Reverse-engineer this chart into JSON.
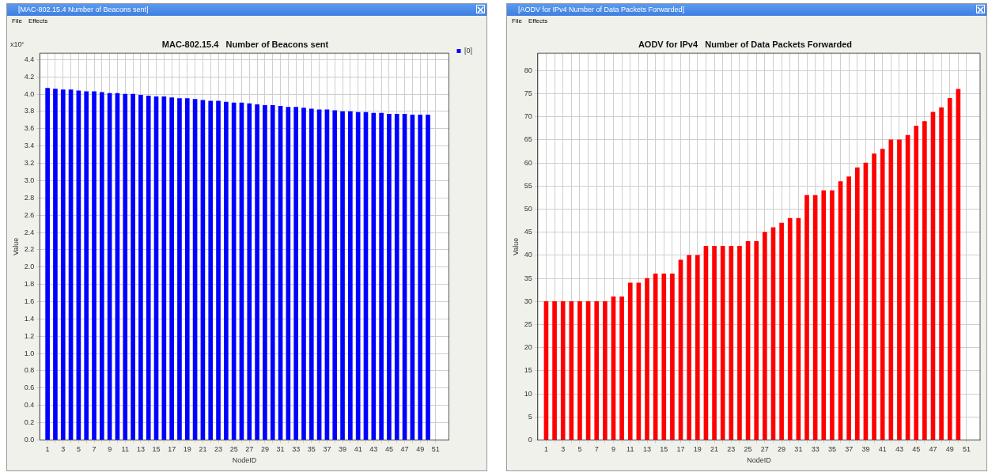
{
  "chart_data": [
    {
      "type": "bar",
      "title": "MAC-802.15.4   Number of Beacons sent",
      "xlabel": "NodeID",
      "ylabel": "Value",
      "legend": "top right",
      "grid": true,
      "annotations": [
        "[MAC-802.15.4   Number of Beacons sent]",
        "File",
        "Effects",
        "x10³"
      ],
      "x": [
        1,
        2,
        3,
        4,
        5,
        6,
        7,
        8,
        9,
        10,
        11,
        12,
        13,
        14,
        15,
        16,
        17,
        18,
        19,
        20,
        21,
        22,
        23,
        24,
        25,
        26,
        27,
        28,
        29,
        30,
        31,
        32,
        33,
        34,
        35,
        36,
        37,
        38,
        39,
        40,
        41,
        42,
        43,
        44,
        45,
        46,
        47,
        48,
        49,
        50
      ],
      "series": [
        {
          "name": "[0]",
          "color": "#0000ff",
          "values": [
            4.07,
            4.06,
            4.05,
            4.05,
            4.04,
            4.03,
            4.03,
            4.02,
            4.01,
            4.01,
            4.0,
            4.0,
            3.99,
            3.98,
            3.97,
            3.97,
            3.96,
            3.95,
            3.95,
            3.94,
            3.93,
            3.92,
            3.92,
            3.91,
            3.9,
            3.9,
            3.89,
            3.88,
            3.87,
            3.87,
            3.86,
            3.85,
            3.85,
            3.84,
            3.83,
            3.82,
            3.82,
            3.81,
            3.8,
            3.8,
            3.79,
            3.79,
            3.78,
            3.78,
            3.77,
            3.77,
            3.77,
            3.76,
            3.76,
            3.76
          ]
        }
      ],
      "xlim": [
        0,
        52.7
      ],
      "xticks": [
        1,
        {
          "value": 2,
          "label": null
        },
        3,
        {
          "value": 4,
          "label": null
        },
        5,
        {
          "value": 6,
          "label": null
        },
        7,
        {
          "value": 8,
          "label": null
        },
        9,
        {
          "value": 10,
          "label": null
        },
        11,
        {
          "value": 12,
          "label": null
        },
        13,
        {
          "value": 14,
          "label": null
        },
        15,
        {
          "value": 16,
          "label": null
        },
        17,
        {
          "value": 18,
          "label": null
        },
        19,
        {
          "value": 20,
          "label": null
        },
        21,
        {
          "value": 22,
          "label": null
        },
        23,
        {
          "value": 24,
          "label": null
        },
        25,
        {
          "value": 26,
          "label": null
        },
        27,
        {
          "value": 28,
          "label": null
        },
        29,
        {
          "value": 30,
          "label": null
        },
        31,
        {
          "value": 32,
          "label": null
        },
        33,
        {
          "value": 34,
          "label": null
        },
        35,
        {
          "value": 36,
          "label": null
        },
        37,
        {
          "value": 38,
          "label": null
        },
        39,
        {
          "value": 40,
          "label": null
        },
        41,
        {
          "value": 42,
          "label": null
        },
        43,
        {
          "value": 44,
          "label": null
        },
        45,
        {
          "value": 46,
          "label": null
        },
        47,
        {
          "value": 48,
          "label": null
        },
        49,
        {
          "value": 50,
          "label": null
        },
        51
      ],
      "ylim": [
        0,
        4.475
      ],
      "yticks": [
        {
          "value": 0,
          "label": "0.0"
        },
        {
          "value": 0.2,
          "label": "0.2"
        },
        {
          "value": 0.4,
          "label": "0.4"
        },
        {
          "value": 0.6,
          "label": "0.6"
        },
        {
          "value": 0.8,
          "label": "0.8"
        },
        {
          "value": 1,
          "label": "1.0"
        },
        {
          "value": 1.2,
          "label": "1.2"
        },
        {
          "value": 1.4,
          "label": "1.4"
        },
        {
          "value": 1.6,
          "label": "1.6"
        },
        {
          "value": 1.8,
          "label": "1.8"
        },
        {
          "value": 2,
          "label": "2.0"
        },
        {
          "value": 2.2,
          "label": "2.2"
        },
        {
          "value": 2.4,
          "label": "2.4"
        },
        {
          "value": 2.6,
          "label": "2.6"
        },
        {
          "value": 2.8,
          "label": "2.8"
        },
        {
          "value": 3,
          "label": "3.0"
        },
        {
          "value": 3.2,
          "label": "3.2"
        },
        {
          "value": 3.4,
          "label": "3.4"
        },
        {
          "value": 3.6,
          "label": "3.6"
        },
        {
          "value": 3.8,
          "label": "3.8"
        },
        {
          "value": 4,
          "label": "4.0"
        },
        {
          "value": 4.2,
          "label": "4.2"
        },
        {
          "value": 4.4,
          "label": "4.4"
        }
      ]
    },
    {
      "type": "bar",
      "title": "AODV for IPv4   Number of Data Packets Forwarded",
      "xlabel": "NodeID",
      "ylabel": "Value",
      "grid": true,
      "annotations": [
        "[AODV for IPv4   Number of Data Packets Forwarded]",
        "File",
        "Effects"
      ],
      "x": [
        1,
        2,
        3,
        4,
        5,
        6,
        7,
        8,
        9,
        10,
        11,
        12,
        13,
        14,
        15,
        16,
        17,
        18,
        19,
        20,
        21,
        22,
        23,
        24,
        25,
        26,
        27,
        28,
        29,
        30,
        31,
        32,
        33,
        34,
        35,
        36,
        37,
        38,
        39,
        40,
        41,
        42,
        43,
        44,
        45,
        46,
        47,
        48,
        49,
        50
      ],
      "series": [
        {
          "color": "#ff0000",
          "values": [
            30,
            30,
            30,
            30,
            30,
            30,
            30,
            30,
            31,
            31,
            34,
            34,
            35,
            36,
            36,
            36,
            39,
            40,
            40,
            42,
            42,
            42,
            42,
            42,
            43,
            43,
            45,
            46,
            47,
            48,
            48,
            53,
            53,
            54,
            54,
            56,
            57,
            59,
            60,
            62,
            63,
            65,
            65,
            66,
            68,
            69,
            71,
            72,
            74,
            76
          ]
        }
      ],
      "xlim": [
        0,
        52.6
      ],
      "xticks": [
        1,
        {
          "value": 2,
          "label": null
        },
        3,
        {
          "value": 4,
          "label": null
        },
        5,
        {
          "value": 6,
          "label": null
        },
        7,
        {
          "value": 8,
          "label": null
        },
        9,
        {
          "value": 10,
          "label": null
        },
        11,
        {
          "value": 12,
          "label": null
        },
        13,
        {
          "value": 14,
          "label": null
        },
        15,
        {
          "value": 16,
          "label": null
        },
        17,
        {
          "value": 18,
          "label": null
        },
        19,
        {
          "value": 20,
          "label": null
        },
        21,
        {
          "value": 22,
          "label": null
        },
        23,
        {
          "value": 24,
          "label": null
        },
        25,
        {
          "value": 26,
          "label": null
        },
        27,
        {
          "value": 28,
          "label": null
        },
        29,
        {
          "value": 30,
          "label": null
        },
        31,
        {
          "value": 32,
          "label": null
        },
        33,
        {
          "value": 34,
          "label": null
        },
        35,
        {
          "value": 36,
          "label": null
        },
        37,
        {
          "value": 38,
          "label": null
        },
        39,
        {
          "value": 40,
          "label": null
        },
        41,
        {
          "value": 42,
          "label": null
        },
        43,
        {
          "value": 44,
          "label": null
        },
        45,
        {
          "value": 46,
          "label": null
        },
        47,
        {
          "value": 48,
          "label": null
        },
        49,
        {
          "value": 50,
          "label": null
        },
        51
      ],
      "ylim": [
        0,
        83.8
      ],
      "yticks": [
        0,
        5,
        10,
        15,
        20,
        25,
        30,
        35,
        40,
        45,
        50,
        55,
        60,
        65,
        70,
        75,
        80
      ]
    }
  ]
}
